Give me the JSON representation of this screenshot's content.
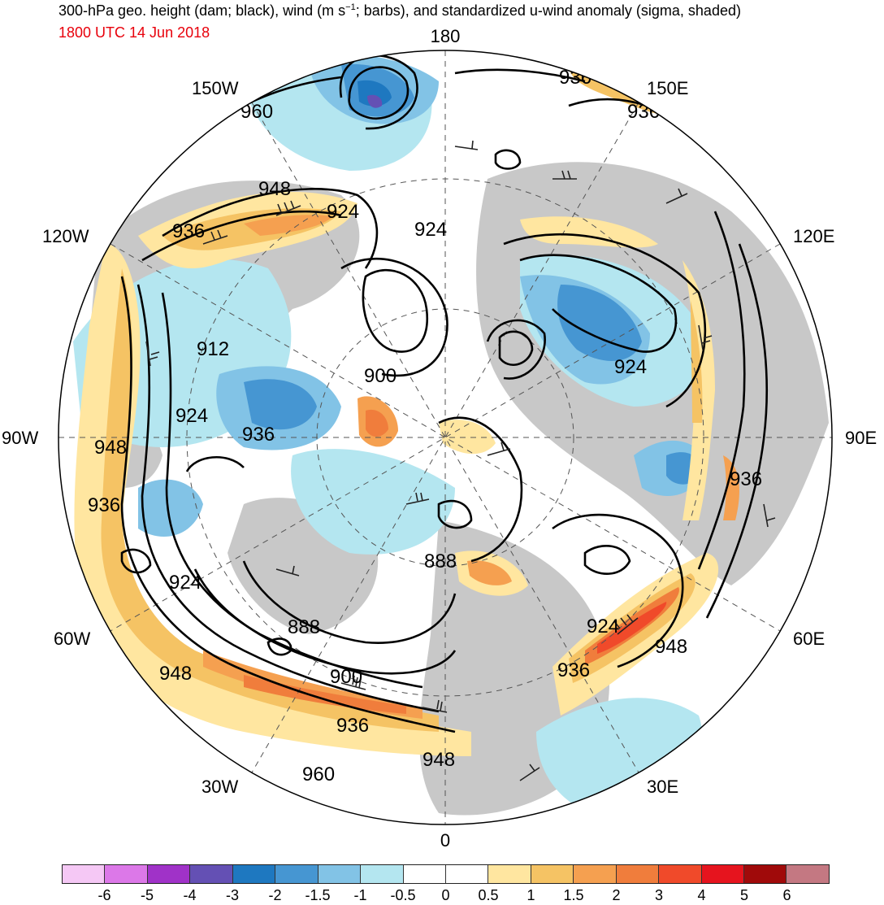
{
  "header": {
    "title_a": "300-hPa geo. height (dam; black), wind (m s",
    "title_sup": "−1",
    "title_b": "; barbs), and standardized u-wind anomaly (sigma, shaded)",
    "datetime": "1800 UTC 14 Jun 2018",
    "datetime_color": "#e8000b"
  },
  "map": {
    "projection": "north-polar-stereographic",
    "longitude_labels": {
      "top": "180",
      "bottom": "0",
      "left": "90W",
      "right": "90E",
      "nw": "150W",
      "ne": "150E",
      "wnw": "120W",
      "ene": "120E",
      "wsw": "60W",
      "ese": "60E",
      "ssw": "30W",
      "sse": "30E"
    },
    "height_contour_labels": [
      "936",
      "936",
      "960",
      "948",
      "924",
      "936",
      "924",
      "912",
      "900",
      "924",
      "924",
      "936",
      "948",
      "936",
      "936",
      "924",
      "888",
      "888",
      "924",
      "948",
      "948",
      "900",
      "936",
      "936",
      "948",
      "960"
    ],
    "land_color": "#c8c8c8",
    "ocean_color": "#ffffff"
  },
  "colorbar": {
    "colors": [
      "#f5c8f5",
      "#dc78e8",
      "#a032c8",
      "#6450b4",
      "#1e78c0",
      "#4696d2",
      "#82c3e6",
      "#b4e6f0",
      "#ffffff",
      "#ffffff",
      "#ffe6a0",
      "#f5c364",
      "#f5a050",
      "#f07d3c",
      "#f04a2a",
      "#e6141e",
      "#a00a0a",
      "#c47882"
    ],
    "tick_labels": [
      "-6",
      "-5",
      "-4",
      "-3",
      "-2",
      "-1.5",
      "-1",
      "-0.5",
      "0",
      "0.5",
      "1",
      "1.5",
      "2",
      "3",
      "4",
      "5",
      "6"
    ]
  }
}
